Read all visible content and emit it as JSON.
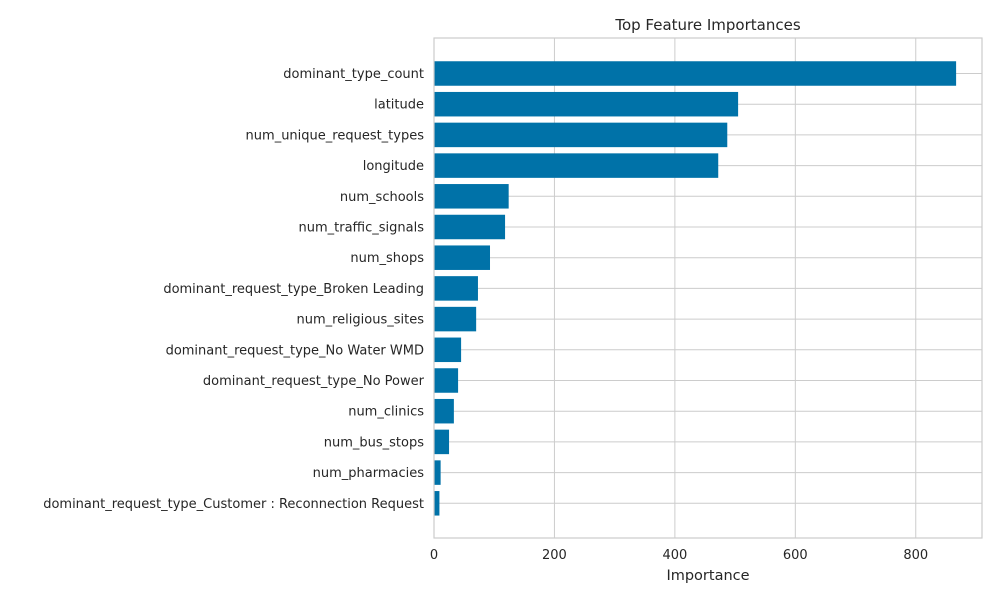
{
  "chart_data": {
    "type": "bar",
    "orientation": "horizontal",
    "title": "Top Feature Importances",
    "xlabel": "Importance",
    "ylabel": "",
    "xlim": [
      0,
      910
    ],
    "xticks": [
      0,
      200,
      400,
      600,
      800
    ],
    "grid": true,
    "bar_color": "#0072a8",
    "categories": [
      "dominant_type_count",
      "latitude",
      "num_unique_request_types",
      "longitude",
      "num_schools",
      "num_traffic_signals",
      "num_shops",
      "dominant_request_type_Broken Leading",
      "num_religious_sites",
      "dominant_request_type_No Water WMD",
      "dominant_request_type_No Power",
      "num_clinics",
      "num_bus_stops",
      "num_pharmacies",
      "dominant_request_type_Customer : Reconnection Request"
    ],
    "values": [
      867,
      505,
      487,
      472,
      124,
      118,
      93,
      73,
      70,
      45,
      40,
      33,
      25,
      11,
      9
    ]
  }
}
